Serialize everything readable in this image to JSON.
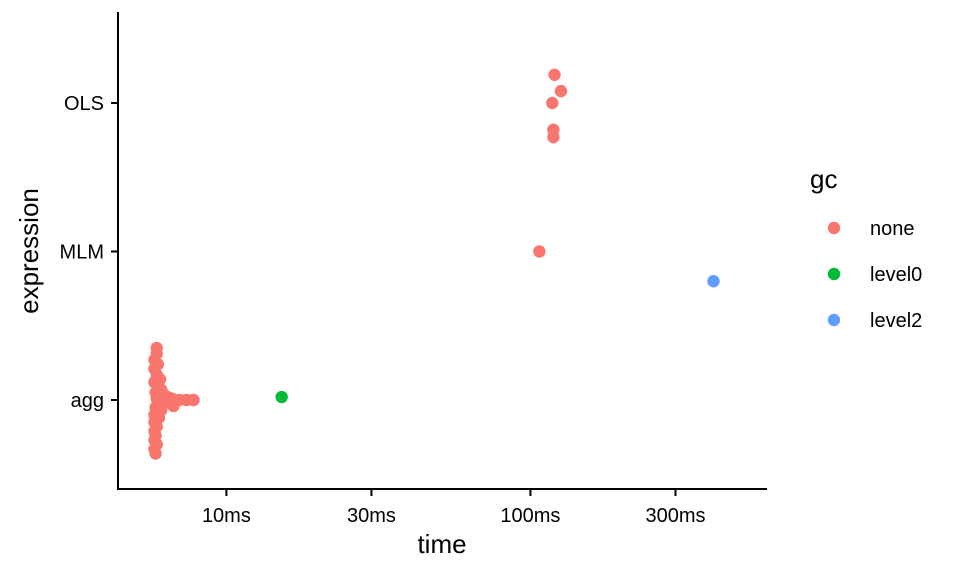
{
  "chart_data": {
    "type": "scatter",
    "xlabel": "time",
    "ylabel": "expression",
    "x_scale": "log10",
    "x_unit": "ms",
    "xlim": [
      4.4,
      600
    ],
    "x_ticks": [
      {
        "value": 10,
        "label": "10ms"
      },
      {
        "value": 30,
        "label": "30ms"
      },
      {
        "value": 100,
        "label": "100ms"
      },
      {
        "value": 300,
        "label": "300ms"
      }
    ],
    "categories": [
      "agg",
      "MLM",
      "OLS"
    ],
    "grid": false,
    "legend": {
      "title": "gc",
      "position": "right",
      "entries": [
        {
          "key": "none",
          "label": "none",
          "color": "#F8766D"
        },
        {
          "key": "level0",
          "label": "level0",
          "color": "#00BA38"
        },
        {
          "key": "level2",
          "label": "level2",
          "color": "#619CFF"
        }
      ]
    },
    "series": [
      {
        "name": "none",
        "color": "#F8766D",
        "points": [
          {
            "category": "OLS",
            "x": 120,
            "offset": 0.19
          },
          {
            "category": "OLS",
            "x": 126,
            "offset": 0.08
          },
          {
            "category": "OLS",
            "x": 118,
            "offset": 0.0
          },
          {
            "category": "OLS",
            "x": 119,
            "offset": -0.18
          },
          {
            "category": "OLS",
            "x": 119,
            "offset": -0.23
          },
          {
            "category": "MLM",
            "x": 107,
            "offset": 0.0
          },
          {
            "category": "agg",
            "x": 5.9,
            "offset": 0.35
          },
          {
            "category": "agg",
            "x": 5.9,
            "offset": 0.31
          },
          {
            "category": "agg",
            "x": 5.8,
            "offset": 0.27
          },
          {
            "category": "agg",
            "x": 5.95,
            "offset": 0.24
          },
          {
            "category": "agg",
            "x": 5.8,
            "offset": 0.21
          },
          {
            "category": "agg",
            "x": 5.9,
            "offset": 0.17
          },
          {
            "category": "agg",
            "x": 6.05,
            "offset": 0.14
          },
          {
            "category": "agg",
            "x": 5.8,
            "offset": 0.12
          },
          {
            "category": "agg",
            "x": 5.95,
            "offset": 0.09
          },
          {
            "category": "agg",
            "x": 6.1,
            "offset": 0.07
          },
          {
            "category": "agg",
            "x": 5.85,
            "offset": 0.05
          },
          {
            "category": "agg",
            "x": 6.2,
            "offset": 0.04
          },
          {
            "category": "agg",
            "x": 6.4,
            "offset": 0.02
          },
          {
            "category": "agg",
            "x": 5.9,
            "offset": 0.01
          },
          {
            "category": "agg",
            "x": 6.6,
            "offset": 0.01
          },
          {
            "category": "agg",
            "x": 7.0,
            "offset": 0.0
          },
          {
            "category": "agg",
            "x": 7.4,
            "offset": 0.0
          },
          {
            "category": "agg",
            "x": 7.8,
            "offset": 0.0
          },
          {
            "category": "agg",
            "x": 5.95,
            "offset": -0.01
          },
          {
            "category": "agg",
            "x": 6.3,
            "offset": -0.02
          },
          {
            "category": "agg",
            "x": 6.7,
            "offset": -0.04
          },
          {
            "category": "agg",
            "x": 5.85,
            "offset": -0.05
          },
          {
            "category": "agg",
            "x": 6.1,
            "offset": -0.07
          },
          {
            "category": "agg",
            "x": 5.8,
            "offset": -0.1
          },
          {
            "category": "agg",
            "x": 6.0,
            "offset": -0.12
          },
          {
            "category": "agg",
            "x": 5.8,
            "offset": -0.15
          },
          {
            "category": "agg",
            "x": 5.9,
            "offset": -0.18
          },
          {
            "category": "agg",
            "x": 5.8,
            "offset": -0.21
          },
          {
            "category": "agg",
            "x": 5.85,
            "offset": -0.24
          },
          {
            "category": "agg",
            "x": 5.8,
            "offset": -0.27
          },
          {
            "category": "agg",
            "x": 5.9,
            "offset": -0.3
          },
          {
            "category": "agg",
            "x": 5.8,
            "offset": -0.33
          },
          {
            "category": "agg",
            "x": 5.85,
            "offset": -0.36
          }
        ]
      },
      {
        "name": "level0",
        "color": "#00BA38",
        "points": [
          {
            "category": "agg",
            "x": 15.2,
            "offset": 0.02
          }
        ]
      },
      {
        "name": "level2",
        "color": "#619CFF",
        "points": [
          {
            "category": "MLM",
            "x": 400,
            "offset": -0.2
          }
        ]
      }
    ]
  }
}
